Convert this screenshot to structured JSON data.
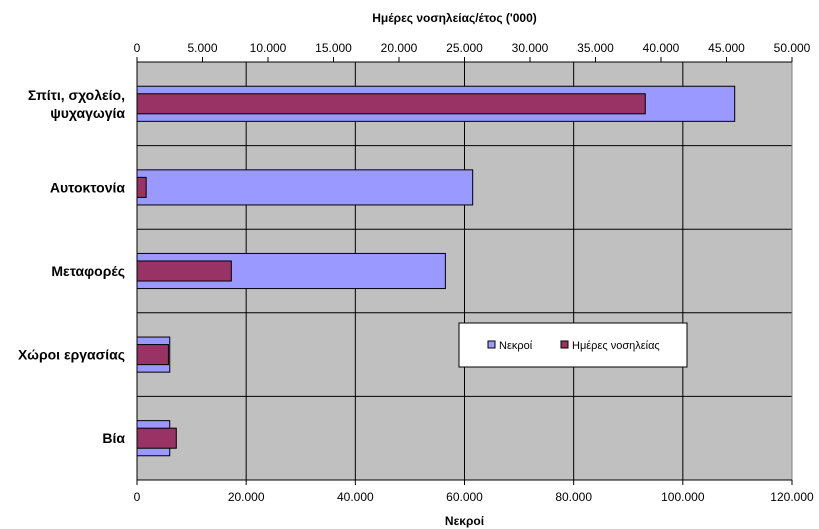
{
  "chart_data": {
    "type": "bar",
    "orientation": "horizontal",
    "categories": [
      "Σπίτι, σχολείο, ψυχαγωγία",
      "Αυτοκτονία",
      "Μεταφορές",
      "Χώροι εργασίας",
      "Βία"
    ],
    "category_lines": [
      [
        "Σπίτι, σχολείο,",
        "ψυχαγωγία"
      ],
      [
        "Αυτοκτονία"
      ],
      [
        "Μεταφορές"
      ],
      [
        "Χώροι εργασίας"
      ],
      [
        "Βία"
      ]
    ],
    "series": [
      {
        "name": "Νεκροί",
        "axis": "bottom",
        "color": "#9999ff",
        "values": [
          109500,
          61500,
          56500,
          6000,
          6000
        ]
      },
      {
        "name": "Ημέρες νοσηλείας",
        "axis": "top",
        "color": "#993366",
        "values": [
          38800,
          700,
          7200,
          2400,
          3000
        ]
      }
    ],
    "bottom_axis": {
      "label": "Νεκροί",
      "range": [
        0,
        120000
      ],
      "ticks": [
        0,
        20000,
        40000,
        60000,
        80000,
        100000,
        120000
      ],
      "tick_labels": [
        "0",
        "20.000",
        "40.000",
        "60.000",
        "80.000",
        "100.000",
        "120.000"
      ]
    },
    "top_axis": {
      "label": "Ημέρες νοσηλείας/έτος ('000)",
      "range": [
        0,
        50000
      ],
      "ticks": [
        0,
        5000,
        10000,
        15000,
        20000,
        25000,
        30000,
        35000,
        40000,
        45000,
        50000
      ],
      "tick_labels": [
        "0",
        "5.000",
        "10.000",
        "15.000",
        "20.000",
        "25.000",
        "30.000",
        "35.000",
        "40.000",
        "45.000",
        "50.000"
      ]
    },
    "grid": true,
    "plot_background": "#c0c0c0",
    "legend": {
      "placement": "inside-right",
      "entries": [
        "Νεκροί",
        "Ημέρες νοσηλείας"
      ]
    }
  }
}
